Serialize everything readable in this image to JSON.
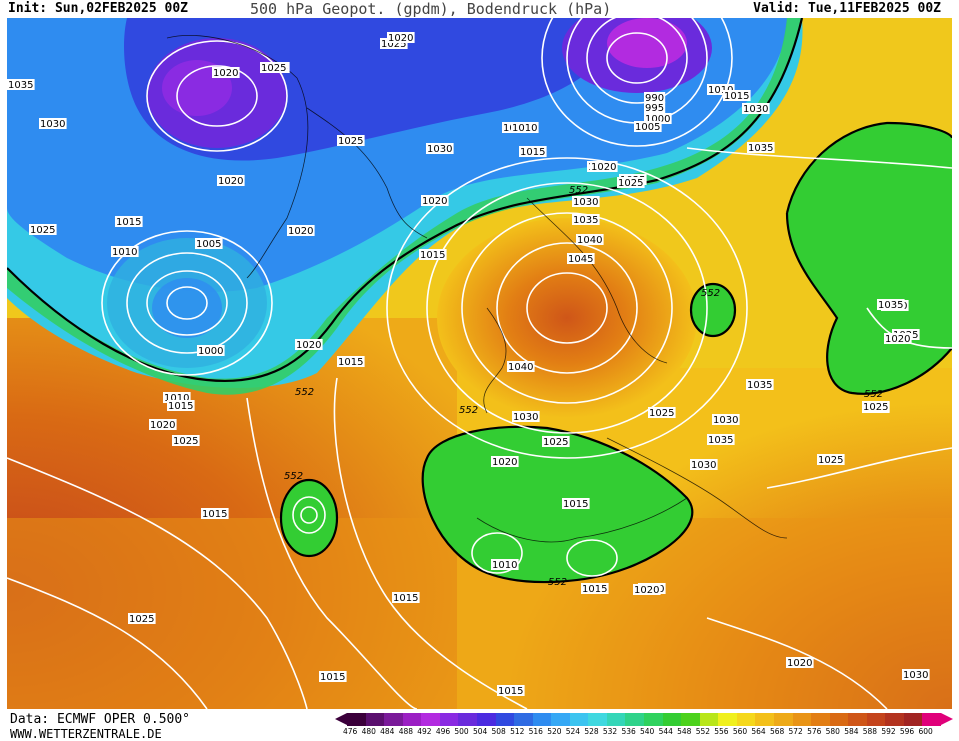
{
  "header": {
    "init": "Init: Sun,02FEB2025 00Z",
    "title": "500 hPa Geopot. (gpdm), Bodendruck (hPa)",
    "valid": "Valid: Tue,11FEB2025 00Z"
  },
  "footer": {
    "source": "Data: ECMWF OPER 0.500°",
    "site": "WWW.WETTERZENTRALE.DE"
  },
  "scale": {
    "values": [
      "476",
      "480",
      "484",
      "488",
      "492",
      "496",
      "500",
      "504",
      "508",
      "512",
      "516",
      "520",
      "524",
      "528",
      "532",
      "536",
      "540",
      "544",
      "548",
      "552",
      "556",
      "560",
      "564",
      "568",
      "572",
      "576",
      "580",
      "584",
      "588",
      "592",
      "596",
      "600"
    ],
    "colors": [
      "#3b003b",
      "#5a0f6e",
      "#7a1a9a",
      "#9b1fc4",
      "#b22be0",
      "#8a2be2",
      "#6a2bdc",
      "#4b2be0",
      "#3049e0",
      "#2f6be3",
      "#2f8cf0",
      "#35a8f5",
      "#3cc4f0",
      "#3fd8e0",
      "#34d6b8",
      "#2fd38a",
      "#2fd25e",
      "#33cd33",
      "#4cd21c",
      "#b8e61a",
      "#f0f01e",
      "#f5d81c",
      "#f3c01a",
      "#eeaa18",
      "#e99416",
      "#e27e14",
      "#d96a14",
      "#cf5618",
      "#c4441c",
      "#b3331f",
      "#a12422",
      "#e0007a"
    ]
  },
  "map_labels": {
    "isobars": [
      {
        "text": "1020"
      },
      {
        "text": "1025"
      },
      {
        "text": "1030"
      },
      {
        "text": "1035"
      },
      {
        "text": "1020"
      },
      {
        "text": "1025"
      },
      {
        "text": "1025"
      },
      {
        "text": "1015"
      },
      {
        "text": "1010"
      },
      {
        "text": "1005"
      },
      {
        "text": "1000"
      },
      {
        "text": "1020"
      },
      {
        "text": "1030"
      },
      {
        "text": "1020"
      },
      {
        "text": "1025"
      },
      {
        "text": "1015"
      },
      {
        "text": "1010"
      },
      {
        "text": "1020"
      },
      {
        "text": "1025"
      },
      {
        "text": "1010"
      },
      {
        "text": "1015"
      },
      {
        "text": "1020"
      },
      {
        "text": "1025"
      },
      {
        "text": "1030"
      },
      {
        "text": "1035"
      },
      {
        "text": "1040"
      },
      {
        "text": "1045"
      },
      {
        "text": "1040"
      },
      {
        "text": "1030"
      },
      {
        "text": "1025"
      },
      {
        "text": "1020"
      },
      {
        "text": "1015"
      },
      {
        "text": "1010"
      },
      {
        "text": "1015"
      },
      {
        "text": "1020"
      },
      {
        "text": "1025"
      },
      {
        "text": "1030"
      },
      {
        "text": "1035"
      },
      {
        "text": "1030"
      },
      {
        "text": "1025"
      },
      {
        "text": "1020"
      },
      {
        "text": "1025"
      },
      {
        "text": "1030"
      },
      {
        "text": "1035"
      },
      {
        "text": "990"
      },
      {
        "text": "995"
      },
      {
        "text": "1000"
      },
      {
        "text": "1005"
      },
      {
        "text": "1010"
      },
      {
        "text": "1015"
      },
      {
        "text": "1030"
      },
      {
        "text": "1025"
      },
      {
        "text": "1020"
      },
      {
        "text": "1015"
      },
      {
        "text": "1020"
      },
      {
        "text": "1010"
      },
      {
        "text": "1015"
      },
      {
        "text": "1020"
      },
      {
        "text": "1025"
      },
      {
        "text": "1015"
      },
      {
        "text": "1020"
      },
      {
        "text": "1025"
      },
      {
        "text": "1015"
      },
      {
        "text": "1015"
      },
      {
        "text": "1035"
      },
      {
        "text": "1020"
      },
      {
        "text": "1015"
      },
      {
        "text": "1030"
      },
      {
        "text": "1035"
      },
      {
        "text": "1020"
      },
      {
        "text": "1025"
      }
    ],
    "height_552": "552"
  }
}
